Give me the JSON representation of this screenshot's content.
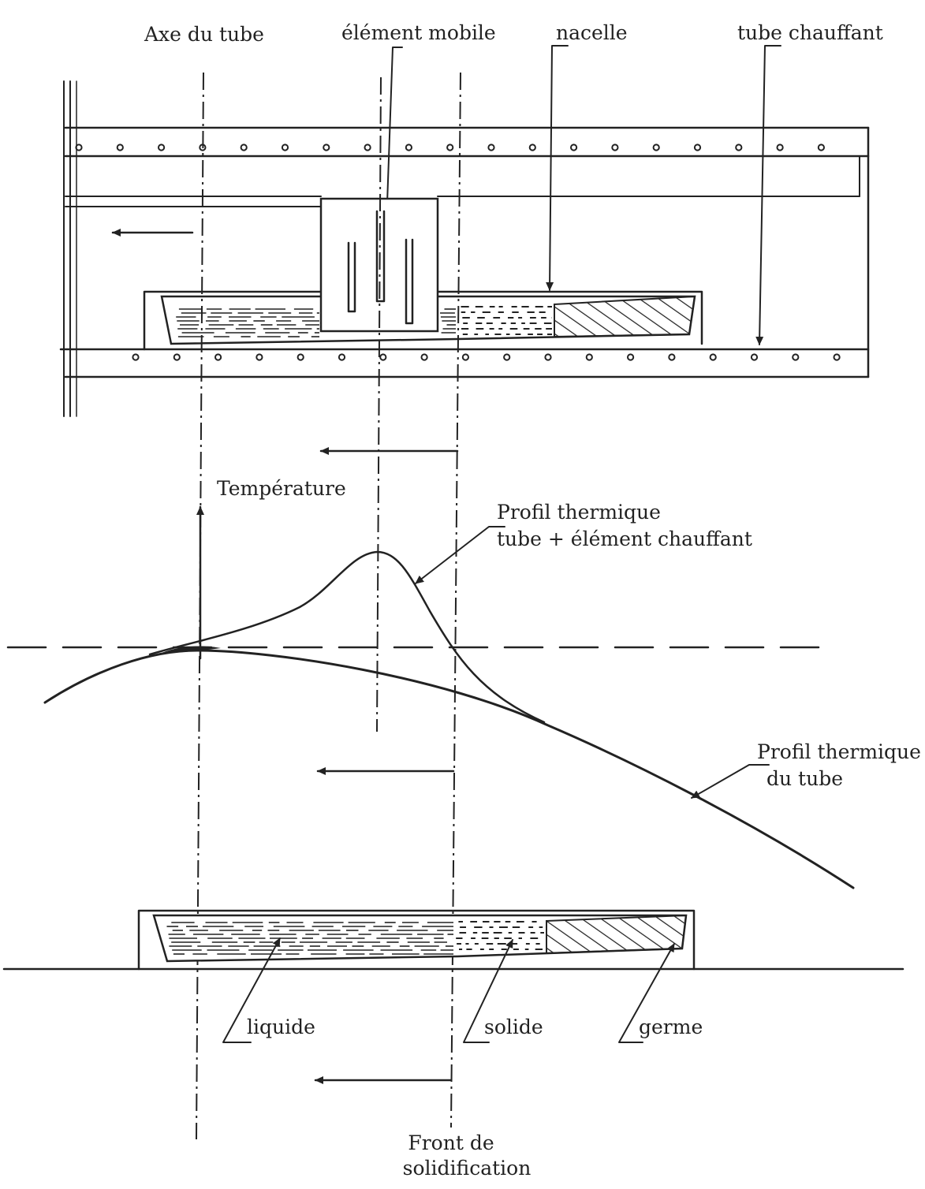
{
  "labels": {
    "axe_du_tube": "Axe du tube",
    "element_mobile": "élément mobile",
    "nacelle": "nacelle",
    "tube_chauffant": "tube chauffant",
    "temperature": "Température",
    "profil_element_line1": "Profil thermique",
    "profil_element_line2": "tube + élément chauffant",
    "profil_tube_line1": "Profil thermique",
    "profil_tube_line2": "du tube",
    "liquide": "liquide",
    "solide": "solide",
    "germe": "germe",
    "front_line1": "Front de",
    "front_line2": "solidification"
  },
  "colors": {
    "ink": "#222222",
    "paper": "#ffffff"
  }
}
